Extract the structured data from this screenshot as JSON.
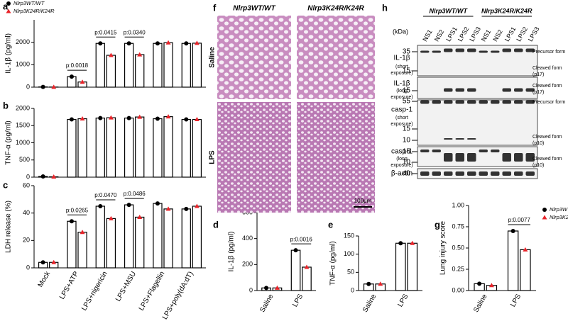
{
  "panel_labels": [
    "a",
    "b",
    "c",
    "d",
    "e",
    "f",
    "g",
    "h"
  ],
  "chart_data": [
    {
      "type": "bar",
      "y_label": "IL-1β (pg/ml)",
      "ylim": [
        0,
        3000
      ],
      "yticks": [
        0,
        1000,
        2000
      ],
      "legend": "top-left",
      "series": [
        {
          "name": "Nlrp3WT/WT",
          "color": "#000000",
          "marker": "circle",
          "values": [
            10,
            470,
            1950,
            1950,
            1950,
            1950
          ]
        },
        {
          "name": "Nlrp3K24R/K24R",
          "color": "#e8242a",
          "marker": "triangle",
          "values": [
            5,
            230,
            1420,
            1450,
            1980,
            1960
          ]
        }
      ],
      "annotations": [
        null,
        "p:0.0018",
        "p:0.0415",
        "p:0.0340",
        null,
        null
      ]
    },
    {
      "type": "bar",
      "y_label": "TNF-α (pg/ml)",
      "ylim": [
        0,
        2000
      ],
      "yticks": [
        0,
        500,
        1000,
        1500,
        2000
      ],
      "series": [
        {
          "name": "Nlrp3WT/WT",
          "color": "#000000",
          "marker": "circle",
          "values": [
            20,
            1680,
            1720,
            1720,
            1700,
            1680
          ]
        },
        {
          "name": "Nlrp3K24R/K24R",
          "color": "#e8242a",
          "marker": "triangle",
          "values": [
            10,
            1700,
            1730,
            1750,
            1760,
            1680
          ]
        }
      ]
    },
    {
      "type": "bar",
      "y_label": "LDH release (%)",
      "ylim": [
        0,
        60
      ],
      "yticks": [
        0,
        20,
        40,
        60
      ],
      "categories": [
        "Mock",
        "LPS+ATP",
        "LPS+nigericin",
        "LPS+MSU",
        "LPS+Flagellin",
        "LPS+poly(dA:dT)"
      ],
      "series": [
        {
          "name": "Nlrp3WT/WT",
          "color": "#000000",
          "marker": "circle",
          "values": [
            4,
            34,
            45,
            46,
            47,
            43
          ]
        },
        {
          "name": "Nlrp3K24R/K24R",
          "color": "#e8242a",
          "marker": "triangle",
          "values": [
            4,
            26,
            36,
            37,
            43,
            45
          ]
        }
      ],
      "annotations": [
        null,
        "p:0.0265",
        "p:0.0470",
        "p:0.0486",
        null,
        null
      ]
    },
    {
      "type": "bar",
      "y_label": "IL-1β (pg/ml)",
      "ylim": [
        0,
        600
      ],
      "yticks": [
        0,
        200,
        400,
        600
      ],
      "categories": [
        "Saline",
        "LPS"
      ],
      "series": [
        {
          "name": "Nlrp3WT/WT",
          "color": "#000000",
          "marker": "circle",
          "values": [
            20,
            310
          ]
        },
        {
          "name": "Nlrp3K24R/K24R",
          "color": "#e8242a",
          "marker": "triangle",
          "values": [
            20,
            180
          ]
        }
      ],
      "annotations": [
        null,
        "p:0.0016"
      ]
    },
    {
      "type": "bar",
      "y_label": "TNF-α (pg/ml)",
      "ylim": [
        0,
        150
      ],
      "yticks": [
        0,
        50,
        100,
        150
      ],
      "categories": [
        "Saline",
        "LPS"
      ],
      "series": [
        {
          "name": "Nlrp3WT/WT",
          "color": "#000000",
          "marker": "circle",
          "values": [
            18,
            130
          ]
        },
        {
          "name": "Nlrp3K24R/K24R",
          "color": "#e8242a",
          "marker": "triangle",
          "values": [
            18,
            130
          ]
        }
      ]
    },
    {
      "type": "bar",
      "y_label": "Lung injury score",
      "ylim": [
        0,
        1
      ],
      "yticks": [
        {
          "value": 0,
          "label": "0.00"
        },
        {
          "value": 0.25,
          "label": "0.25"
        },
        {
          "value": 0.5,
          "label": "0.50"
        },
        {
          "value": 0.75,
          "label": "0.75"
        },
        {
          "value": 1,
          "label": "1.00"
        }
      ],
      "legend": "right",
      "categories": [
        "Saline",
        "LPS"
      ],
      "series": [
        {
          "name": "Nlrp3WT/WT",
          "color": "#000000",
          "marker": "circle",
          "values": [
            0.08,
            0.7
          ]
        },
        {
          "name": "Nlrp3K24R/K24R",
          "color": "#e8242a",
          "marker": "triangle",
          "values": [
            0.06,
            0.48
          ]
        }
      ],
      "annotations": [
        null,
        "p:0.0077"
      ]
    }
  ],
  "histology": {
    "columns": [
      "Nlrp3WT/WT",
      "Nlrp3K24R/K24R"
    ],
    "rows": [
      "Saline",
      "LPS"
    ],
    "scale_bar": "100μm"
  },
  "blot": {
    "unit": "(kDa)",
    "groups": [
      "Nlrp3WT/WT",
      "Nlrp3K24R/K24R"
    ],
    "lanes": [
      "NS1",
      "NS2",
      "LPS1",
      "LPS2",
      "LPS3",
      "NS1",
      "NS2",
      "LPS1",
      "LPS2",
      "LPS3"
    ],
    "panels": [
      {
        "label": [
          "IL-1β",
          "(short",
          "exposure)"
        ],
        "markers": [
          35,
          15
        ],
        "annotations": [
          "Precursor form",
          "Cleaved form",
          "(p17)"
        ]
      },
      {
        "label": [
          "IL-1β",
          "(long",
          "exposure)"
        ],
        "markers": [
          15
        ],
        "annotations": [
          "Cleaved form",
          "(p17)"
        ]
      },
      {
        "label": [
          "casp-1",
          "(short",
          "exposure)"
        ],
        "markers": [
          55,
          15,
          10
        ],
        "annotations": [
          "Precursor form",
          "Cleaved form",
          "(p10)"
        ]
      },
      {
        "label": [
          "casp-1",
          "(long",
          "exposure)"
        ],
        "markers": [
          15,
          10
        ],
        "annotations": [
          "Cleaved form",
          "(p10)"
        ]
      },
      {
        "label": [
          "β-actin"
        ],
        "markers": [
          40
        ],
        "annotations": []
      }
    ]
  }
}
